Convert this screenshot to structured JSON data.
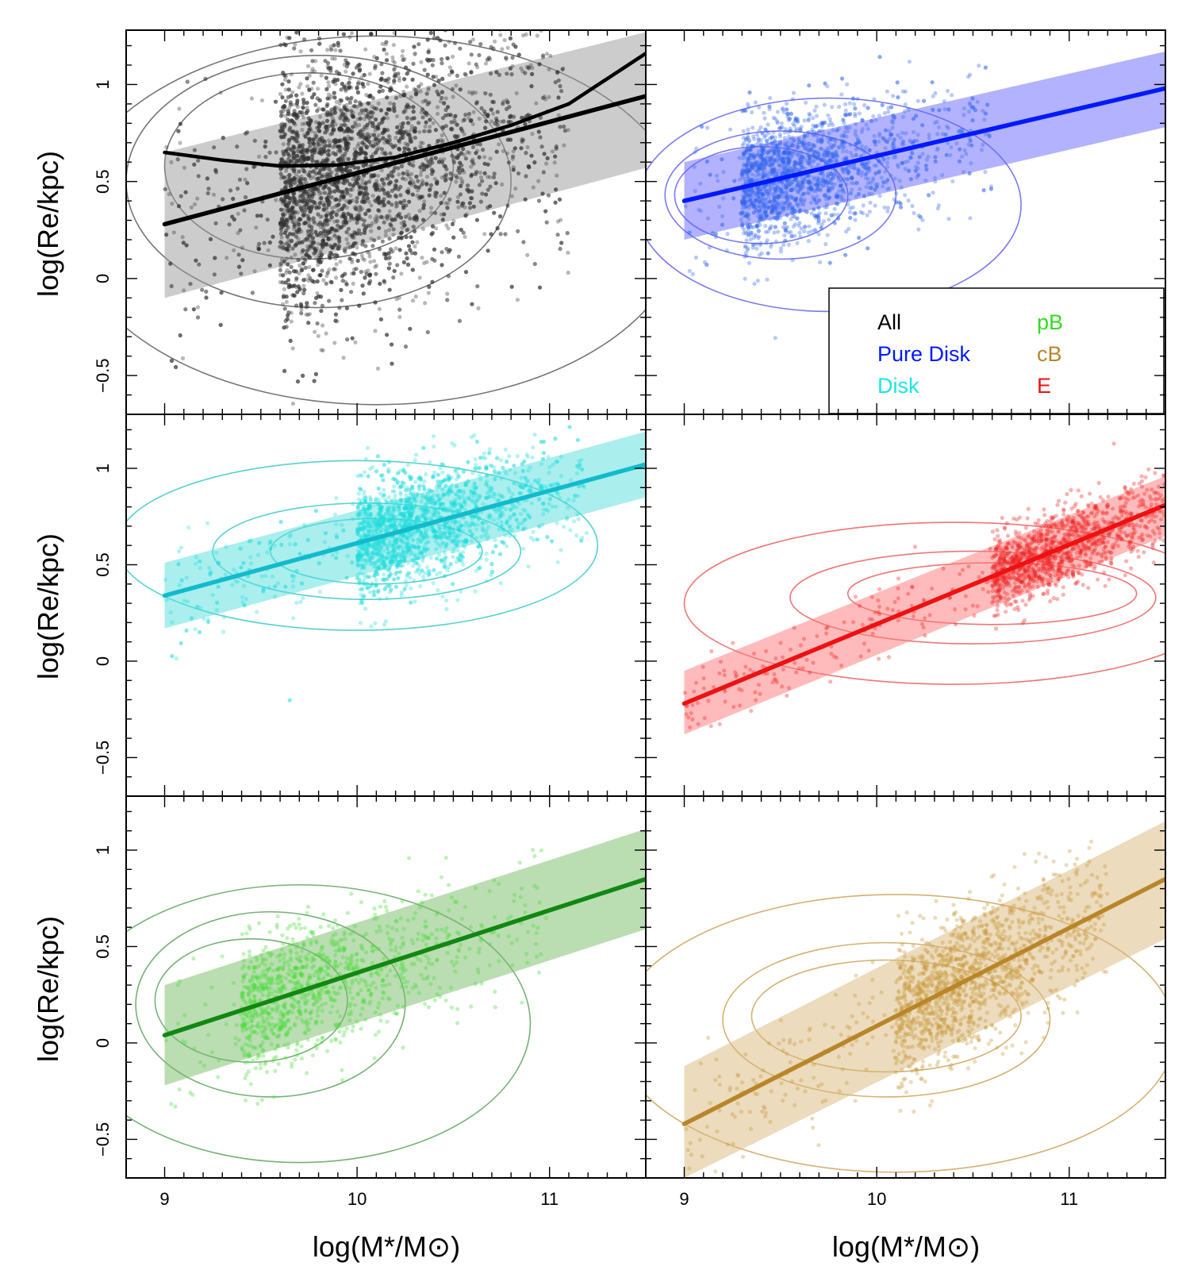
{
  "chart_data": {
    "type": "scatter",
    "xlabel": "log(M*/M⊙)",
    "ylabel": "log(Re/kpc)",
    "xlim": [
      8.8,
      11.5
    ],
    "ylim": [
      -0.7,
      1.28
    ],
    "x_ticks": [
      9,
      10,
      11
    ],
    "x_tick_labels": [
      "9",
      "10",
      "11"
    ],
    "y_ticks": [
      -0.5,
      0,
      0.5,
      1
    ],
    "y_tick_labels": [
      "−0.5",
      "0",
      "0.5",
      "1"
    ],
    "legend": [
      {
        "label": "All",
        "color": "#000000"
      },
      {
        "label": "Pure Disk",
        "color": "#0019ff"
      },
      {
        "label": "Disk",
        "color": "#19e6e6"
      },
      {
        "label": "pB",
        "color": "#33dd22"
      },
      {
        "label": "cB",
        "color": "#b8862a"
      },
      {
        "label": "E",
        "color": "#ee1111"
      }
    ],
    "panels": [
      {
        "name": "All",
        "row": 0,
        "col": 0,
        "point_color": "#333333",
        "line_color": "#000000",
        "band_color": "#999999",
        "contour_color": "#666666",
        "fit": {
          "x0": 9.0,
          "x1": 11.5,
          "y0": 0.28,
          "y1": 0.94
        },
        "band": {
          "lower_x0": -0.1,
          "upper_x0": 0.65,
          "lower_x1": 0.57,
          "upper_x1": 1.27
        },
        "curve_fit": [
          [
            9.0,
            0.65
          ],
          [
            9.3,
            0.61
          ],
          [
            9.6,
            0.58
          ],
          [
            9.9,
            0.585
          ],
          [
            10.2,
            0.625
          ],
          [
            10.5,
            0.7
          ],
          [
            10.8,
            0.79
          ],
          [
            11.1,
            0.9
          ],
          [
            11.5,
            1.16
          ]
        ],
        "scatter": {
          "count": 5200,
          "x_center": 9.6,
          "x_spread": 0.5,
          "x_min": 9.0,
          "x_max": 11.1,
          "scatter_sd": 0.33
        },
        "contours": [
          {
            "cx": 10.1,
            "cy": 0.3,
            "rx": 1.6,
            "ry": 0.95
          },
          {
            "cx": 9.8,
            "cy": 0.5,
            "rx": 1.0,
            "ry": 0.65
          },
          {
            "cx": 9.75,
            "cy": 0.58,
            "rx": 0.75,
            "ry": 0.48
          }
        ]
      },
      {
        "name": "Pure Disk",
        "row": 0,
        "col": 1,
        "point_color": "#3366ee",
        "line_color": "#0019ff",
        "band_color": "#6666ff",
        "contour_color": "#6a6aee",
        "fit": {
          "x0": 9.0,
          "x1": 11.5,
          "y0": 0.4,
          "y1": 0.98
        },
        "band": {
          "lower_x0": 0.2,
          "upper_x0": 0.6,
          "lower_x1": 0.78,
          "upper_x1": 1.17
        },
        "scatter": {
          "count": 2100,
          "x_center": 9.3,
          "x_spread": 0.35,
          "x_min": 9.0,
          "x_max": 10.6,
          "scatter_sd": 0.17
        },
        "contours": [
          {
            "cx": 9.75,
            "cy": 0.38,
            "rx": 1.0,
            "ry": 0.55
          },
          {
            "cx": 9.5,
            "cy": 0.43,
            "rx": 0.6,
            "ry": 0.33
          },
          {
            "cx": 9.4,
            "cy": 0.43,
            "rx": 0.45,
            "ry": 0.25
          }
        ]
      },
      {
        "name": "Disk",
        "row": 1,
        "col": 0,
        "point_color": "#22dddd",
        "line_color": "#11bbcc",
        "band_color": "#55dddd",
        "contour_color": "#44cccc",
        "fit": {
          "x0": 9.0,
          "x1": 11.5,
          "y0": 0.34,
          "y1": 1.02
        },
        "band": {
          "lower_x0": 0.17,
          "upper_x0": 0.51,
          "lower_x1": 0.85,
          "upper_x1": 1.19
        },
        "scatter": {
          "count": 2300,
          "x_center": 10.0,
          "x_spread": 0.4,
          "x_min": 9.0,
          "x_max": 11.2,
          "scatter_sd": 0.15
        },
        "contours": [
          {
            "cx": 10.0,
            "cy": 0.6,
            "rx": 1.25,
            "ry": 0.44
          },
          {
            "cx": 10.05,
            "cy": 0.57,
            "rx": 0.8,
            "ry": 0.25
          },
          {
            "cx": 10.1,
            "cy": 0.57,
            "rx": 0.55,
            "ry": 0.17
          }
        ]
      },
      {
        "name": "E",
        "row": 1,
        "col": 1,
        "point_color": "#ee2222",
        "line_color": "#ee1111",
        "band_color": "#ff7777",
        "contour_color": "#ee6666",
        "fit": {
          "x0": 9.0,
          "x1": 11.5,
          "y0": -0.22,
          "y1": 0.81
        },
        "band": {
          "lower_x0": -0.38,
          "upper_x0": -0.05,
          "lower_x1": 0.65,
          "upper_x1": 0.96
        },
        "scatter": {
          "count": 1400,
          "x_center": 10.6,
          "x_spread": 0.45,
          "x_min": 9.0,
          "x_max": 11.5,
          "scatter_sd": 0.1
        },
        "contours": [
          {
            "cx": 10.4,
            "cy": 0.3,
            "rx": 1.4,
            "ry": 0.42
          },
          {
            "cx": 10.5,
            "cy": 0.33,
            "rx": 0.95,
            "ry": 0.24
          },
          {
            "cx": 10.6,
            "cy": 0.35,
            "rx": 0.75,
            "ry": 0.16
          }
        ]
      },
      {
        "name": "pB",
        "row": 2,
        "col": 0,
        "point_color": "#44dd33",
        "line_color": "#118811",
        "band_color": "#77bb66",
        "contour_color": "#66aa66",
        "fit": {
          "x0": 9.0,
          "x1": 11.5,
          "y0": 0.04,
          "y1": 0.85
        },
        "band": {
          "lower_x0": -0.22,
          "upper_x0": 0.3,
          "lower_x1": 0.59,
          "upper_x1": 1.11
        },
        "scatter": {
          "count": 1100,
          "x_center": 9.4,
          "x_spread": 0.45,
          "x_min": 9.0,
          "x_max": 11.0,
          "scatter_sd": 0.17
        },
        "contours": [
          {
            "cx": 9.7,
            "cy": 0.1,
            "rx": 1.2,
            "ry": 0.72
          },
          {
            "cx": 9.55,
            "cy": 0.2,
            "rx": 0.7,
            "ry": 0.48
          },
          {
            "cx": 9.45,
            "cy": 0.22,
            "rx": 0.5,
            "ry": 0.32
          }
        ]
      },
      {
        "name": "cB",
        "row": 2,
        "col": 1,
        "point_color": "#c8993a",
        "line_color": "#b8862a",
        "band_color": "#d9b87a",
        "contour_color": "#d0a860",
        "fit": {
          "x0": 9.0,
          "x1": 11.5,
          "y0": -0.42,
          "y1": 0.85
        },
        "band": {
          "lower_x0": -0.7,
          "upper_x0": -0.12,
          "lower_x1": 0.54,
          "upper_x1": 1.15
        },
        "scatter": {
          "count": 1500,
          "x_center": 10.1,
          "x_spread": 0.5,
          "x_min": 9.0,
          "x_max": 11.2,
          "scatter_sd": 0.18
        },
        "contours": [
          {
            "cx": 10.1,
            "cy": 0.05,
            "rx": 1.45,
            "ry": 0.72
          },
          {
            "cx": 10.05,
            "cy": 0.12,
            "rx": 0.85,
            "ry": 0.4
          },
          {
            "cx": 10.05,
            "cy": 0.14,
            "rx": 0.7,
            "ry": 0.29
          }
        ]
      }
    ]
  }
}
